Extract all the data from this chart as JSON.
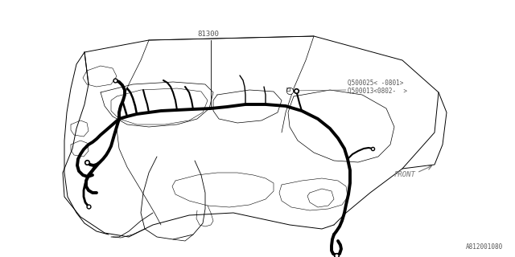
{
  "bg_color": "#ffffff",
  "lc": "#000000",
  "wc": "#000000",
  "glc": "#aaaaaa",
  "label_81300": "81300",
  "label_q1": "Q500025＜ -0801＞",
  "label_q2": "Q500013＜0802-  ＞",
  "label_front": "FRONT",
  "label_part": "A812001080",
  "fig_width": 6.4,
  "fig_height": 3.2,
  "dpi": 100
}
